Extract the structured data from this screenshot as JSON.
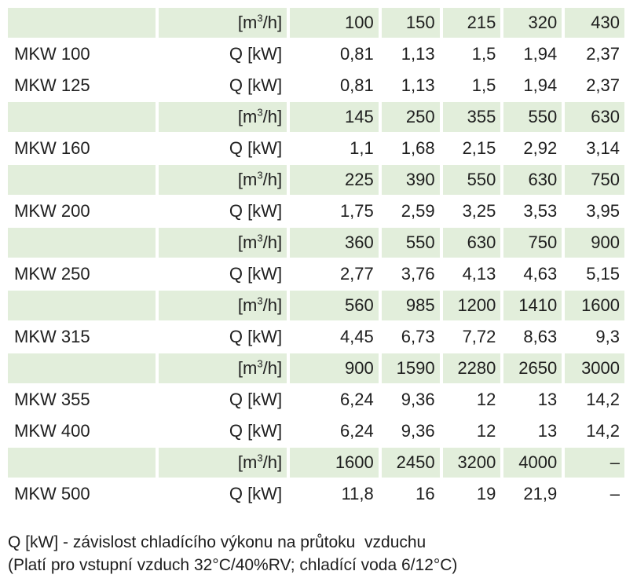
{
  "colors": {
    "flow_row_bg": "#e2eedb",
    "text": "#1e1e1e"
  },
  "table": {
    "rows": [
      {
        "type": "flow",
        "model": "",
        "unit_pre": "[m",
        "unit_sup": "3",
        "unit_post": "/h]",
        "values": [
          "100",
          "150",
          "215",
          "320",
          "430"
        ]
      },
      {
        "type": "power",
        "model": "MKW 100",
        "unit": "Q [kW]",
        "values": [
          "0,81",
          "1,13",
          "1,5",
          "1,94",
          "2,37"
        ]
      },
      {
        "type": "power",
        "model": "MKW 125",
        "unit": "Q [kW]",
        "values": [
          "0,81",
          "1,13",
          "1,5",
          "1,94",
          "2,37"
        ]
      },
      {
        "type": "flow",
        "model": "",
        "unit_pre": "[m",
        "unit_sup": "3",
        "unit_post": "/h]",
        "values": [
          "145",
          "250",
          "355",
          "550",
          "630"
        ]
      },
      {
        "type": "power",
        "model": "MKW 160",
        "unit": "Q [kW]",
        "values": [
          "1,1",
          "1,68",
          "2,15",
          "2,92",
          "3,14"
        ]
      },
      {
        "type": "flow",
        "model": "",
        "unit_pre": "[m",
        "unit_sup": "3",
        "unit_post": "/h]",
        "values": [
          "225",
          "390",
          "550",
          "630",
          "750"
        ]
      },
      {
        "type": "power",
        "model": "MKW 200",
        "unit": "Q [kW]",
        "values": [
          "1,75",
          "2,59",
          "3,25",
          "3,53",
          "3,95"
        ]
      },
      {
        "type": "flow",
        "model": "",
        "unit_pre": "[m",
        "unit_sup": "3",
        "unit_post": "/h]",
        "values": [
          "360",
          "550",
          "630",
          "750",
          "900"
        ]
      },
      {
        "type": "power",
        "model": "MKW 250",
        "unit": "Q [kW]",
        "values": [
          "2,77",
          "3,76",
          "4,13",
          "4,63",
          "5,15"
        ]
      },
      {
        "type": "flow",
        "model": "",
        "unit_pre": "[m",
        "unit_sup": "3",
        "unit_post": "/h]",
        "values": [
          "560",
          "985",
          "1200",
          "1410",
          "1600"
        ]
      },
      {
        "type": "power",
        "model": "MKW 315",
        "unit": "Q [kW]",
        "values": [
          "4,45",
          "6,73",
          "7,72",
          "8,63",
          "9,3"
        ]
      },
      {
        "type": "flow",
        "model": "",
        "unit_pre": "[m",
        "unit_sup": "3",
        "unit_post": "/h]",
        "values": [
          "900",
          "1590",
          "2280",
          "2650",
          "3000"
        ]
      },
      {
        "type": "power",
        "model": "MKW 355",
        "unit": "Q [kW]",
        "values": [
          "6,24",
          "9,36",
          "12",
          "13",
          "14,2"
        ]
      },
      {
        "type": "power",
        "model": "MKW 400",
        "unit": "Q [kW]",
        "values": [
          "6,24",
          "9,36",
          "12",
          "13",
          "14,2"
        ]
      },
      {
        "type": "flow",
        "model": "",
        "unit_pre": "[m",
        "unit_sup": "3",
        "unit_post": "/h]",
        "values": [
          "1600",
          "2450",
          "3200",
          "4000",
          "–"
        ]
      },
      {
        "type": "power",
        "model": "MKW 500",
        "unit": "Q [kW]",
        "values": [
          "11,8",
          "16",
          "19",
          "21,9",
          "–"
        ]
      }
    ]
  },
  "footnote": {
    "line1": "Q [kW] - závislost chladícího výkonu na průtoku  vzduchu",
    "line2": "(Platí pro vstupní vzduch 32°C/40%RV; chladící voda 6/12°C)"
  }
}
